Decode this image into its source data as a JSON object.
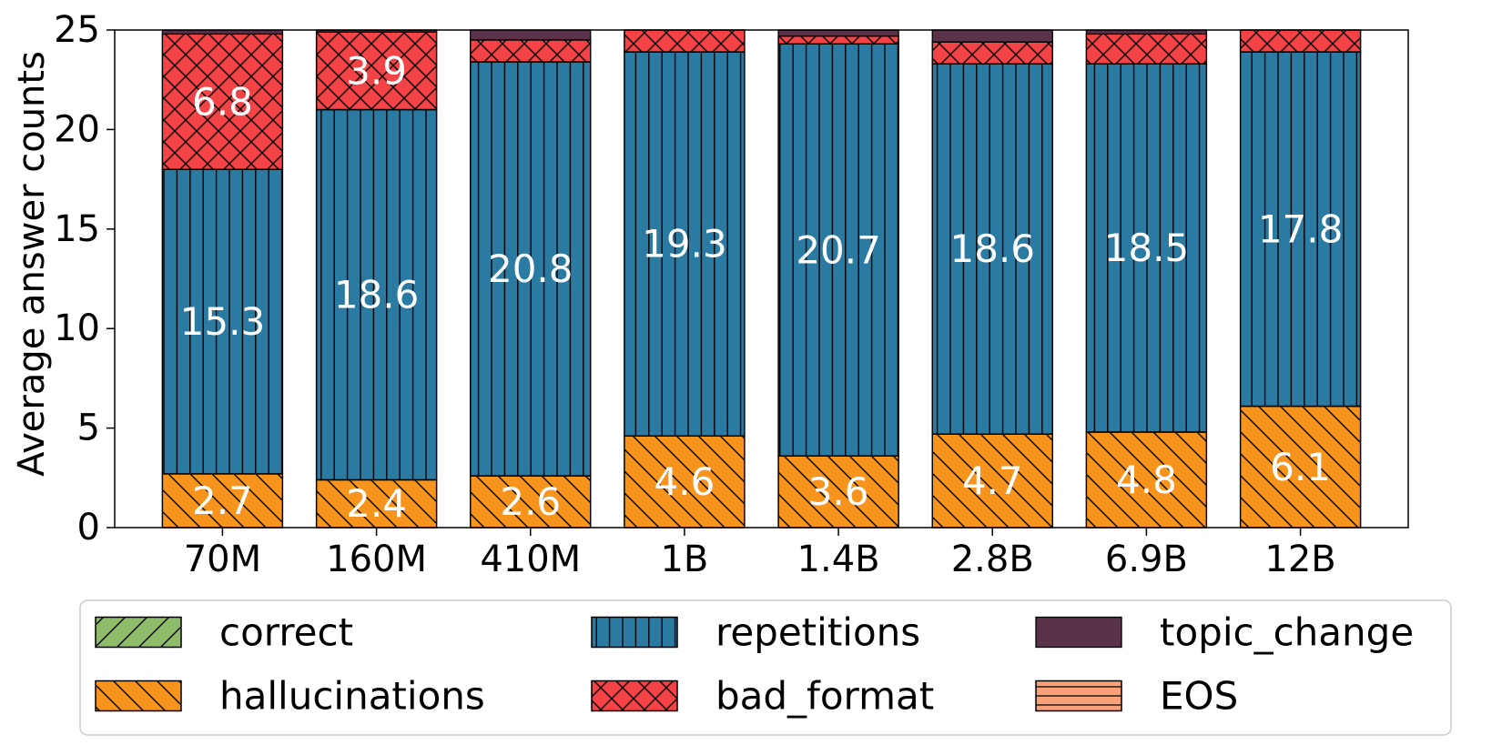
{
  "chart_data": {
    "type": "bar",
    "stacked": true,
    "title": "",
    "xlabel": "",
    "ylabel": "Average answer counts",
    "ylim": [
      0,
      25
    ],
    "yticks": [
      0,
      5,
      10,
      15,
      20,
      25
    ],
    "categories": [
      "70M",
      "160M",
      "410M",
      "1B",
      "1.4B",
      "2.8B",
      "6.9B",
      "12B"
    ],
    "series": [
      {
        "name": "correct",
        "color": "#8fbc6a",
        "hatch": "diag-up",
        "values": [
          0,
          0,
          0,
          0,
          0,
          0,
          0,
          0
        ]
      },
      {
        "name": "hallucinations",
        "color": "#f7941d",
        "hatch": "diag-down",
        "values": [
          2.7,
          2.4,
          2.6,
          4.6,
          3.6,
          4.7,
          4.8,
          6.1
        ],
        "labels": [
          "2.7",
          "2.4",
          "2.6",
          "4.6",
          "3.6",
          "4.7",
          "4.8",
          "6.1"
        ]
      },
      {
        "name": "repetitions",
        "color": "#2a7aa1",
        "hatch": "vertical",
        "values": [
          15.3,
          18.6,
          20.8,
          19.3,
          20.7,
          18.6,
          18.5,
          17.8
        ],
        "labels": [
          "15.3",
          "18.6",
          "20.8",
          "19.3",
          "20.7",
          "18.6",
          "18.5",
          "17.8"
        ]
      },
      {
        "name": "bad_format",
        "color": "#f44346",
        "hatch": "cross",
        "values": [
          6.8,
          3.9,
          1.1,
          1.1,
          0.4,
          1.1,
          1.5,
          1.1
        ],
        "labels": [
          "6.8",
          "3.9",
          "",
          "",
          "",
          "",
          "",
          ""
        ]
      },
      {
        "name": "topic_change",
        "color": "#5a3249",
        "hatch": "none",
        "values": [
          0.2,
          0.1,
          0.5,
          0,
          0.3,
          0.6,
          0.2,
          0
        ]
      },
      {
        "name": "EOS",
        "color": "#f9a27a",
        "hatch": "horizontal",
        "values": [
          0,
          0,
          0,
          0,
          0,
          0,
          0,
          0
        ]
      }
    ],
    "legend": {
      "position": "bottom",
      "columns": 3,
      "order": [
        "correct",
        "hallucinations",
        "repetitions",
        "bad_format",
        "topic_change",
        "EOS"
      ]
    }
  }
}
